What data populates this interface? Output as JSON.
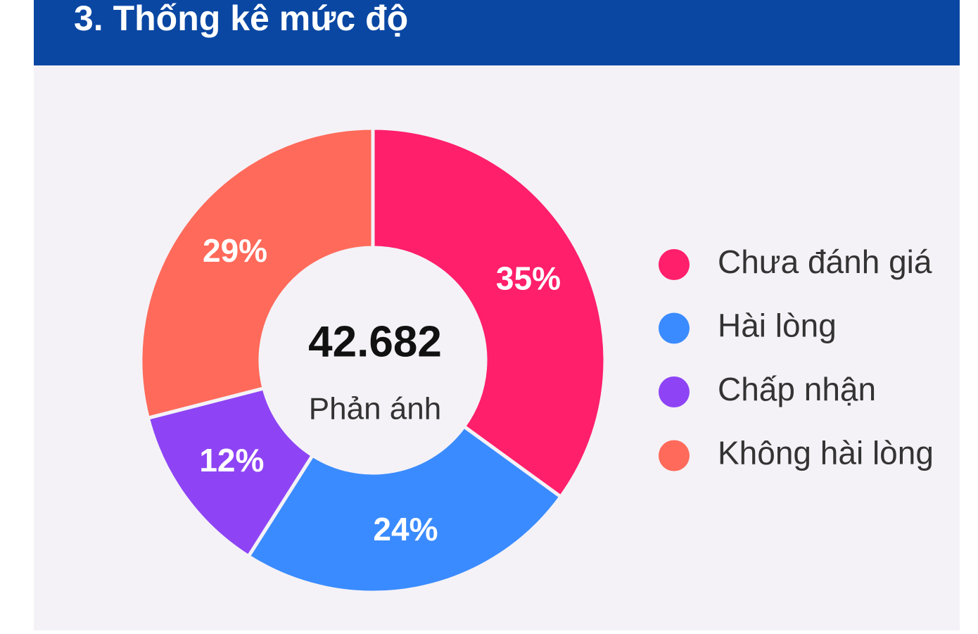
{
  "chart_data": {
    "type": "pie",
    "title": "3. Thống kê mức độ",
    "center_text": "42.682",
    "center_subtitle": "Phản ánh",
    "categories": [
      "Chưa đánh giá",
      "Hài lòng",
      "Chấp nhận",
      "Không hài lòng"
    ],
    "values": [
      35,
      24,
      12,
      29
    ],
    "value_labels": [
      "35%",
      "24%",
      "12%",
      "29%"
    ],
    "colors": [
      "#ff1f6b",
      "#3a8bff",
      "#8e44f5",
      "#ff6a5a"
    ]
  }
}
